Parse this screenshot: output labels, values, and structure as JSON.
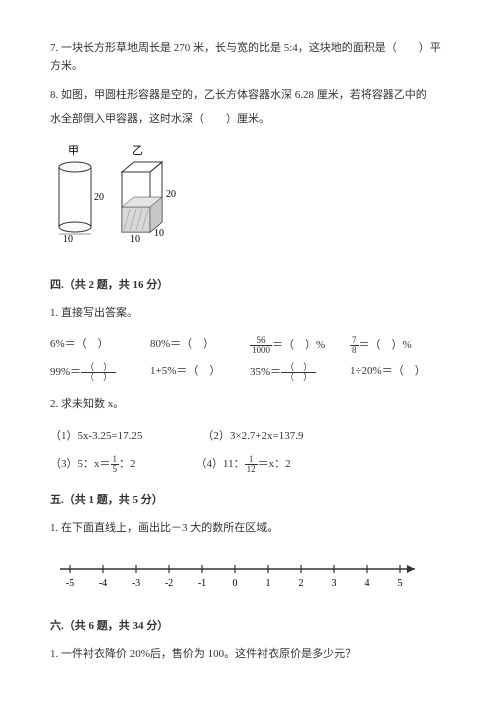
{
  "q7": {
    "text": "7. 一块长方形草地周长是 270 米，长与宽的比是 5:4，这块地的面积是（　　）平方米。"
  },
  "q8": {
    "text1": "8. 如图，甲圆柱形容器是空的，乙长方体容器水深 6.28 厘米，若将容器乙中的",
    "text2": "水全部倒入甲容器，这时水深（　　）厘米。"
  },
  "figure": {
    "jia_label": "甲",
    "yi_label": "乙",
    "jia_height": "20",
    "jia_diameter": "10",
    "yi_height": "20",
    "yi_width1": "10",
    "yi_width2": "10",
    "cylinder_fill": "#ffffff",
    "cylinder_stroke": "#333333",
    "cuboid_fill": "#ffffff",
    "cuboid_hatch": "#888888",
    "cuboid_stroke": "#333333"
  },
  "section4": {
    "header": "四.（共 2 题，共 16 分）",
    "q1": "1. 直接写出答案。",
    "row1": [
      {
        "expr": "6%＝（　）"
      },
      {
        "expr": "80%＝（　）"
      },
      {
        "expr_frac": {
          "num": "56",
          "den": "1000"
        },
        "suffix": "＝（　）%"
      },
      {
        "expr_frac": {
          "num": "7",
          "den": "8"
        },
        "suffix": "＝（　）%"
      }
    ],
    "row2": [
      {
        "expr": "99%＝",
        "frac_paren": true
      },
      {
        "expr": "1+5%＝（　）"
      },
      {
        "expr": "35%＝",
        "frac_paren": true
      },
      {
        "expr": "1÷20%＝（　）"
      }
    ],
    "q2": "2. 求未知数 x。",
    "solve": [
      {
        "label": "（1）",
        "expr": "5x-3.25=17.25"
      },
      {
        "label": "（2）",
        "expr": "3×2.7+2x=137.9"
      },
      {
        "label": "（3）",
        "expr_pre": "5：x＝",
        "frac": {
          "num": "1",
          "den": "5"
        },
        "expr_post": "：2"
      },
      {
        "label": "（4）",
        "expr_pre": "11：",
        "frac": {
          "num": "1",
          "den": "12"
        },
        "expr_post": "＝x：2"
      }
    ]
  },
  "section5": {
    "header": "五.（共 1 题，共 5 分）",
    "q1": "1. 在下面直线上，画出比－3 大的数所在区域。"
  },
  "number_line": {
    "ticks": [
      "-5",
      "-4",
      "-3",
      "-2",
      "-1",
      "0",
      "1",
      "2",
      "3",
      "4",
      "5"
    ],
    "stroke": "#333333"
  },
  "section6": {
    "header": "六.（共 6 题，共 34 分）",
    "q1": "1. 一件衬衣降价 20%后，售价为 100。这件衬衣原价是多少元？"
  }
}
